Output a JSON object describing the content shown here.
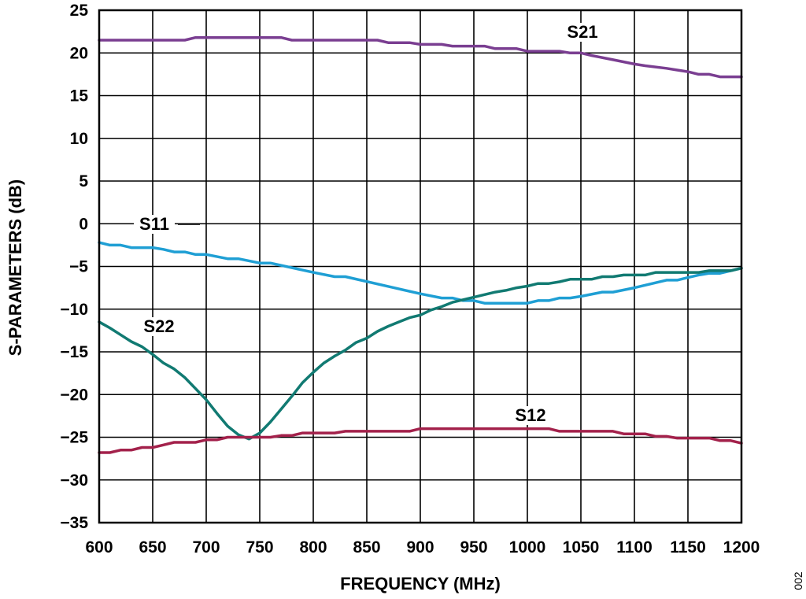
{
  "figure_number": "002",
  "chart_data": {
    "type": "line",
    "title": "",
    "xlabel": "FREQUENCY (MHz)",
    "ylabel": "S-PARAMETERS (dB)",
    "xlim": [
      600,
      1200
    ],
    "ylim": [
      -35,
      25
    ],
    "x_ticks": [
      600,
      650,
      700,
      750,
      800,
      850,
      900,
      950,
      1000,
      1050,
      1100,
      1150,
      1200
    ],
    "y_ticks": [
      25,
      20,
      15,
      10,
      5,
      0,
      -5,
      -10,
      -15,
      -20,
      -25,
      -30,
      -35
    ],
    "x_tick_labels": [
      "600",
      "650",
      "700",
      "750",
      "800",
      "850",
      "900",
      "950",
      "1000",
      "1050",
      "1100",
      "1150",
      "1200"
    ],
    "y_tick_labels": [
      "25",
      "20",
      "15",
      "10",
      "5",
      "0",
      "−5",
      "−10",
      "−15",
      "−20",
      "−25",
      "−30",
      "−35"
    ],
    "grid": true,
    "series": [
      {
        "name": "S21",
        "color": "#7a3e91",
        "x": [
          600,
          650,
          680,
          690,
          700,
          750,
          770,
          780,
          800,
          850,
          860,
          870,
          890,
          900,
          920,
          930,
          950,
          960,
          970,
          990,
          1000,
          1030,
          1040,
          1050,
          1060,
          1080,
          1100,
          1110,
          1130,
          1140,
          1150,
          1160,
          1170,
          1180,
          1190,
          1200
        ],
        "values": [
          21.5,
          21.5,
          21.5,
          21.8,
          21.8,
          21.8,
          21.8,
          21.5,
          21.5,
          21.5,
          21.5,
          21.2,
          21.2,
          21.0,
          21.0,
          20.8,
          20.8,
          20.8,
          20.5,
          20.5,
          20.2,
          20.2,
          20.0,
          20.0,
          19.7,
          19.2,
          18.7,
          18.5,
          18.2,
          18.0,
          17.8,
          17.5,
          17.5,
          17.2,
          17.2,
          17.2
        ]
      },
      {
        "name": "S11",
        "color": "#1f9fd4",
        "x": [
          600,
          610,
          620,
          630,
          650,
          660,
          670,
          680,
          690,
          700,
          720,
          730,
          750,
          760,
          800,
          820,
          830,
          900,
          920,
          930,
          940,
          950,
          960,
          1000,
          1010,
          1020,
          1030,
          1040,
          1050,
          1070,
          1080,
          1100,
          1130,
          1140,
          1150,
          1160,
          1170,
          1180,
          1190,
          1200
        ],
        "values": [
          -2.2,
          -2.5,
          -2.5,
          -2.8,
          -2.8,
          -3.0,
          -3.3,
          -3.3,
          -3.6,
          -3.6,
          -4.1,
          -4.1,
          -4.6,
          -4.6,
          -5.7,
          -6.2,
          -6.2,
          -8.2,
          -8.7,
          -8.7,
          -9.0,
          -9.0,
          -9.3,
          -9.3,
          -9.0,
          -9.0,
          -8.7,
          -8.7,
          -8.5,
          -8.0,
          -8.0,
          -7.5,
          -6.6,
          -6.6,
          -6.3,
          -6.0,
          -5.8,
          -5.8,
          -5.5,
          -5.2
        ]
      },
      {
        "name": "S22",
        "color": "#117a72",
        "x": [
          600,
          610,
          620,
          630,
          640,
          650,
          660,
          670,
          680,
          690,
          700,
          710,
          720,
          730,
          740,
          750,
          760,
          770,
          780,
          790,
          800,
          810,
          820,
          830,
          840,
          850,
          860,
          870,
          880,
          890,
          900,
          910,
          920,
          930,
          940,
          950,
          960,
          970,
          980,
          990,
          1000,
          1010,
          1020,
          1030,
          1040,
          1050,
          1060,
          1070,
          1080,
          1090,
          1100,
          1110,
          1120,
          1130,
          1140,
          1150,
          1160,
          1170,
          1180,
          1190,
          1200
        ],
        "values": [
          -11.5,
          -12.2,
          -13.0,
          -13.8,
          -14.4,
          -15.3,
          -16.3,
          -17.0,
          -18.0,
          -19.3,
          -20.6,
          -22.2,
          -23.7,
          -24.7,
          -25.2,
          -24.5,
          -23.2,
          -21.7,
          -20.2,
          -18.6,
          -17.4,
          -16.3,
          -15.5,
          -14.8,
          -13.9,
          -13.4,
          -12.6,
          -12.0,
          -11.5,
          -11.0,
          -10.7,
          -10.1,
          -9.7,
          -9.2,
          -8.9,
          -8.6,
          -8.3,
          -8.0,
          -7.8,
          -7.5,
          -7.3,
          -7.0,
          -7.0,
          -6.8,
          -6.5,
          -6.5,
          -6.5,
          -6.2,
          -6.2,
          -6.0,
          -6.0,
          -6.0,
          -5.7,
          -5.7,
          -5.7,
          -5.7,
          -5.7,
          -5.5,
          -5.5,
          -5.5,
          -5.2
        ]
      },
      {
        "name": "S12",
        "color": "#a3214b",
        "x": [
          600,
          610,
          620,
          630,
          640,
          650,
          660,
          670,
          690,
          700,
          710,
          720,
          760,
          770,
          780,
          790,
          820,
          830,
          890,
          900,
          1020,
          1030,
          1080,
          1090,
          1110,
          1120,
          1130,
          1140,
          1160,
          1170,
          1180,
          1190,
          1200
        ],
        "values": [
          -26.8,
          -26.8,
          -26.5,
          -26.5,
          -26.2,
          -26.2,
          -25.9,
          -25.6,
          -25.6,
          -25.3,
          -25.3,
          -25.0,
          -25.0,
          -24.8,
          -24.8,
          -24.5,
          -24.5,
          -24.3,
          -24.3,
          -24.0,
          -24.0,
          -24.3,
          -24.3,
          -24.6,
          -24.6,
          -24.9,
          -24.9,
          -25.1,
          -25.1,
          -25.1,
          -25.4,
          -25.4,
          -25.7
        ]
      }
    ]
  }
}
